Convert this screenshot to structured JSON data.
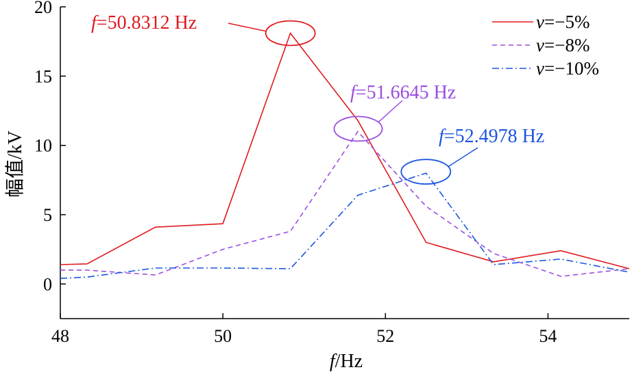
{
  "chart_data": {
    "type": "line",
    "xlabel_italic": "f",
    "xlabel_rest": "/Hz",
    "ylabel": "幅值/kV",
    "xlim": [
      48,
      55
    ],
    "ylim": [
      -2.5,
      20
    ],
    "xticks": [
      48,
      50,
      52,
      54
    ],
    "yticks": [
      0,
      5,
      10,
      15,
      20
    ],
    "grid": false,
    "legend_position": "top-right",
    "series": [
      {
        "name": "v=−5%",
        "legend_var": "v",
        "legend_value": "=−5%",
        "color": "#e0191e",
        "style": "solid",
        "x": [
          48,
          48.33,
          49.17,
          50.0,
          50.83,
          51.66,
          52.5,
          53.33,
          54.16,
          55
        ],
        "y": [
          1.4,
          1.45,
          4.1,
          4.35,
          18.1,
          11.8,
          3.0,
          1.6,
          2.4,
          1.1
        ]
      },
      {
        "name": "v=−8%",
        "legend_var": "v",
        "legend_value": "=−8%",
        "color": "#9b4de0",
        "style": "dashed",
        "x": [
          48,
          48.33,
          49.17,
          50.0,
          50.83,
          51.66,
          52.5,
          53.33,
          54.16,
          55
        ],
        "y": [
          1.0,
          1.0,
          0.65,
          2.5,
          3.8,
          11.0,
          5.6,
          2.2,
          0.55,
          1.1
        ]
      },
      {
        "name": "v=−10%",
        "legend_var": "v",
        "legend_value": "=−10%",
        "color": "#1a55e0",
        "style": "dashdot",
        "x": [
          48,
          48.33,
          49.17,
          50.0,
          50.83,
          51.66,
          52.5,
          53.33,
          54.16,
          55
        ],
        "y": [
          0.4,
          0.5,
          1.15,
          1.15,
          1.1,
          6.4,
          8.0,
          1.4,
          1.8,
          0.85
        ]
      }
    ],
    "annotations": [
      {
        "italic": "f",
        "text": "=50.8312 Hz",
        "color": "#e0191e",
        "peak_x": 50.8312,
        "peak_y": 18.1
      },
      {
        "italic": "f",
        "text": "=51.6645 Hz",
        "color": "#9b4de0",
        "peak_x": 51.6645,
        "peak_y": 11.2
      },
      {
        "italic": "f",
        "text": "=52.4978 Hz",
        "color": "#1a55e0",
        "peak_x": 52.4978,
        "peak_y": 8.1
      }
    ]
  }
}
